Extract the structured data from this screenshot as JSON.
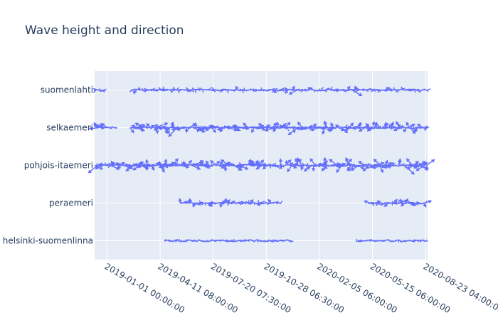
{
  "chart_data": {
    "type": "scatter",
    "title": "Wave height and direction",
    "xlabel": "",
    "ylabel": "",
    "x_ticks": [
      "2019-01-01 00:00:00",
      "2019-04-11 08:00:00",
      "2019-07-20 07:30:00",
      "2019-10-28 06:30:00",
      "2020-02-05 06:00:00",
      "2020-05-15 06:00:00",
      "2020-08-23 04:00:00"
    ],
    "x_range": [
      "2018-12-09",
      "2020-08-27"
    ],
    "grid": true,
    "legend": "none",
    "categories": [
      "suomenlahti",
      "selkaemeri",
      "pohjois-itaemeri",
      "peraemeri",
      "helsinki-suomenlinna"
    ],
    "series": [
      {
        "name": "suomenlahti",
        "segments": [
          [
            "2018-12-09",
            "2018-12-31"
          ],
          [
            "2019-02-16",
            "2020-08-27"
          ]
        ],
        "typical_arrow": 0.6,
        "max_arrow": 1.6
      },
      {
        "name": "selkaemeri",
        "segments": [
          [
            "2018-12-14",
            "2019-01-16"
          ],
          [
            "2019-02-14",
            "2020-08-27"
          ]
        ],
        "typical_arrow": 1.0,
        "max_arrow": 2.0
      },
      {
        "name": "pohjois-itaemeri",
        "segments": [
          [
            "2018-12-09",
            "2020-08-27"
          ]
        ],
        "typical_arrow": 1.2,
        "max_arrow": 2.3
      },
      {
        "name": "peraemeri",
        "segments": [
          [
            "2019-05-20",
            "2019-11-25"
          ],
          [
            "2020-05-08",
            "2020-08-27"
          ]
        ],
        "typical_arrow": 0.7,
        "max_arrow": 1.2
      },
      {
        "name": "helsinki-suomenlinna",
        "segments": [
          [
            "2019-04-20",
            "2019-12-20"
          ],
          [
            "2020-04-15",
            "2020-08-27"
          ]
        ],
        "typical_arrow": 0.3,
        "max_arrow": 0.6
      }
    ],
    "colors": {
      "trace": "#636efa",
      "plot_bg": "#e5ecf6",
      "grid": "#ffffff",
      "text": "#2a3f5f"
    }
  }
}
